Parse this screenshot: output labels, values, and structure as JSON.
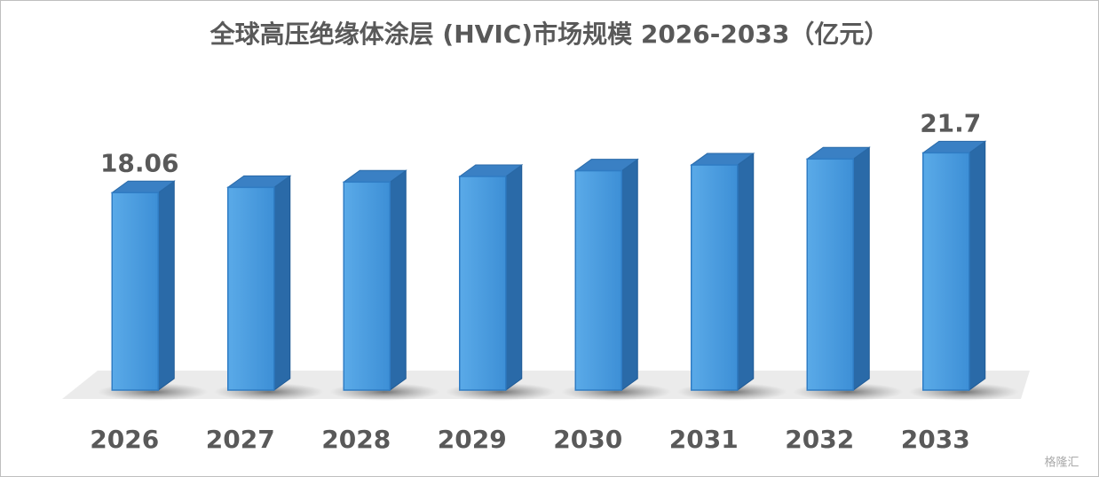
{
  "chart_data": {
    "type": "bar3d",
    "title": "全球高压绝缘体涂层 (HVIC)市场规模 2026-2033（亿元）",
    "categories": [
      "2026",
      "2027",
      "2028",
      "2029",
      "2030",
      "2031",
      "2032",
      "2033"
    ],
    "values": [
      18.06,
      18.54,
      19.03,
      19.54,
      20.06,
      20.59,
      21.14,
      21.7
    ],
    "color": "#4a9ee0",
    "ylim": [
      0,
      24
    ],
    "grid": false
  },
  "watermark": "格隆汇"
}
